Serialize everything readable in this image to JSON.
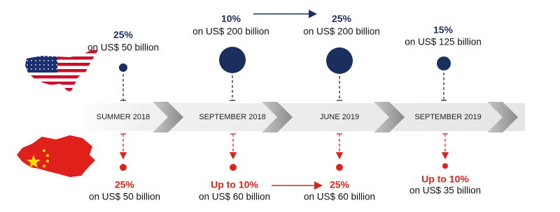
{
  "us_tariffs": [
    {
      "rate": "25%",
      "amount": "on US$ 50 billion"
    },
    {
      "rate": "10%",
      "amount": "on US$ 200 billion"
    },
    {
      "rate": "25%",
      "amount": "on US$ 200 billion"
    },
    {
      "rate": "15%",
      "amount": "on US$ 125 billion"
    }
  ],
  "timeline": [
    "SUMMER 2018",
    "SEPTEMBER 2018",
    "JUNE 2019",
    "SEPTEMBER 2019"
  ],
  "china_tariffs": [
    {
      "rate": "25%",
      "amount": "on US$ 50 billion"
    },
    {
      "rate": "Up to 10%",
      "amount": "on US$ 60 billion"
    },
    {
      "rate": "25%",
      "amount": "on US$ 60 billion"
    },
    {
      "rate": "Up to 10%",
      "amount": "on US$ 35 billion"
    }
  ]
}
